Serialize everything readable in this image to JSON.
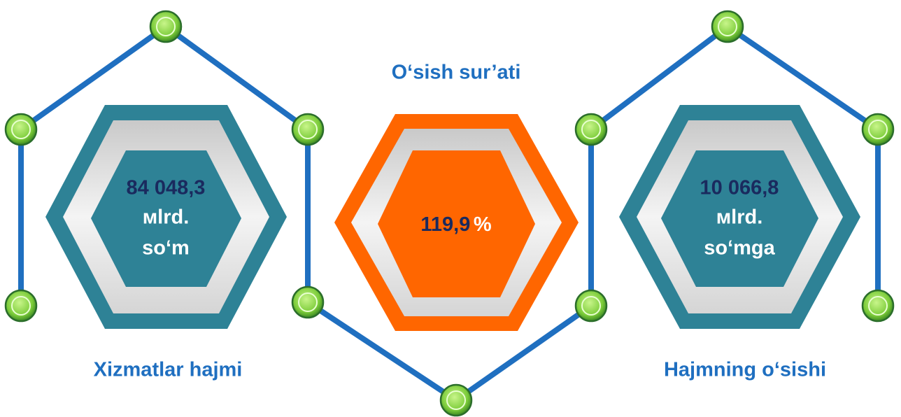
{
  "panels": [
    {
      "label": "Xizmatlar hajmi",
      "lines": [
        "84 048,3",
        "мlrd.",
        "so‘m"
      ]
    },
    {
      "label": "O‘sish sur’ati",
      "value": "119,9",
      "unit": "%"
    },
    {
      "label": "Hajmning o‘sishi",
      "lines": [
        "10 066,8",
        "мlrd.",
        "so‘mga"
      ]
    }
  ]
}
